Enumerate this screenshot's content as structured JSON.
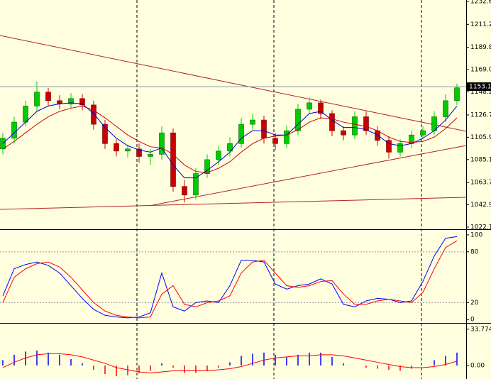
{
  "chart_data": [
    {
      "type": "candlestick",
      "open": [
        1095,
        1105,
        1120,
        1135,
        1148,
        1140,
        1137,
        1142,
        1136,
        1118,
        1100,
        1093,
        1095,
        1088,
        1090,
        1110,
        1060,
        1052,
        1072,
        1085,
        1093,
        1100,
        1118,
        1122,
        1105,
        1100,
        1112,
        1132,
        1138,
        1128,
        1112,
        1108,
        1125,
        1112,
        1103,
        1092,
        1100,
        1108,
        1112,
        1125,
        1140
      ],
      "high": [
        1110,
        1125,
        1140,
        1158,
        1152,
        1145,
        1147,
        1146,
        1140,
        1122,
        1104,
        1099,
        1100,
        1095,
        1116,
        1114,
        1066,
        1077,
        1090,
        1098,
        1106,
        1124,
        1128,
        1126,
        1110,
        1117,
        1137,
        1143,
        1141,
        1131,
        1116,
        1130,
        1130,
        1116,
        1107,
        1104,
        1112,
        1116,
        1130,
        1146,
        1156
      ],
      "low": [
        1090,
        1100,
        1116,
        1130,
        1135,
        1132,
        1133,
        1131,
        1113,
        1095,
        1088,
        1087,
        1082,
        1080,
        1085,
        1055,
        1045,
        1048,
        1068,
        1080,
        1088,
        1096,
        1113,
        1100,
        1094,
        1096,
        1108,
        1128,
        1123,
        1107,
        1103,
        1104,
        1108,
        1098,
        1086,
        1088,
        1096,
        1104,
        1108,
        1120,
        1136
      ],
      "close": [
        1105,
        1120,
        1135,
        1148,
        1140,
        1137,
        1142,
        1136,
        1118,
        1100,
        1093,
        1095,
        1088,
        1090,
        1110,
        1060,
        1052,
        1072,
        1085,
        1093,
        1100,
        1118,
        1122,
        1105,
        1100,
        1112,
        1132,
        1138,
        1128,
        1112,
        1108,
        1125,
        1112,
        1103,
        1092,
        1100,
        1108,
        1112,
        1125,
        1140,
        1152
      ],
      "up_color": "#00cc00",
      "down_color": "#cc0000",
      "series": [
        {
          "color": "#0000cc",
          "values": [
            1100,
            1110,
            1120,
            1130,
            1135,
            1137,
            1138,
            1137,
            1128,
            1115,
            1105,
            1098,
            1094,
            1092,
            1096,
            1080,
            1068,
            1068,
            1075,
            1083,
            1092,
            1105,
            1112,
            1112,
            1108,
            1108,
            1118,
            1128,
            1130,
            1122,
            1115,
            1115,
            1113,
            1108,
            1100,
            1098,
            1100,
            1105,
            1112,
            1122,
            1135
          ]
        },
        {
          "color": "#cc0000",
          "values": [
            1095,
            1102,
            1110,
            1118,
            1125,
            1130,
            1133,
            1135,
            1131,
            1124,
            1116,
            1108,
            1102,
            1097,
            1096,
            1090,
            1080,
            1074,
            1073,
            1077,
            1083,
            1092,
            1100,
            1105,
            1107,
            1108,
            1113,
            1120,
            1124,
            1123,
            1120,
            1118,
            1116,
            1112,
            1106,
            1102,
            1101,
            1102,
            1106,
            1114,
            1124
          ]
        }
      ],
      "last_price": 1153.1,
      "ylim": [
        1020.1,
        1233.9
      ],
      "yticks": [
        1022.1,
        1042.9,
        1063.7,
        1085.1,
        1105.9,
        1126.7,
        1148.2,
        {
          "value": 1169,
          "label": "1169.0"
        },
        1189.8,
        1211.2,
        1232.6
      ]
    },
    {
      "type": "line",
      "series": [
        {
          "color": "#0000ff",
          "values": [
            28,
            60,
            65,
            68,
            64,
            55,
            40,
            25,
            12,
            5,
            3,
            2,
            3,
            8,
            55,
            15,
            10,
            20,
            22,
            20,
            40,
            70,
            70,
            68,
            42,
            36,
            40,
            42,
            48,
            42,
            18,
            15,
            22,
            25,
            24,
            20,
            22,
            45,
            75,
            96,
            98
          ]
        },
        {
          "color": "#ff0000",
          "values": [
            20,
            50,
            60,
            66,
            68,
            62,
            50,
            35,
            20,
            10,
            5,
            3,
            2,
            3,
            30,
            40,
            18,
            15,
            20,
            22,
            28,
            55,
            68,
            70,
            55,
            40,
            38,
            40,
            45,
            46,
            30,
            18,
            18,
            22,
            24,
            22,
            20,
            32,
            60,
            85,
            93
          ]
        }
      ],
      "levels": [
        20,
        80
      ],
      "ylim": [
        -4,
        105
      ],
      "yticks": [
        0,
        20,
        80,
        100
      ]
    },
    {
      "type": "bar",
      "values": [
        5,
        10,
        13,
        14,
        12,
        10,
        6,
        2,
        -4,
        -8,
        -10,
        -9,
        -7,
        -5,
        2,
        -2,
        -7,
        -7,
        -5,
        -2,
        3,
        9,
        11,
        12,
        10,
        8,
        10,
        12,
        12,
        8,
        2,
        0,
        -2,
        -3,
        -4,
        -5,
        -3,
        0,
        5,
        9,
        12
      ],
      "up_color": "#0000ff",
      "down_color": "#ff0000",
      "signal": {
        "color": "#ff0000",
        "values": [
          -2,
          3,
          7,
          10,
          11,
          11,
          10,
          8,
          5,
          2,
          -2,
          -4,
          -6,
          -7,
          -6,
          -5,
          -5,
          -5,
          -5,
          -4,
          -3,
          -1,
          2,
          5,
          7,
          8,
          9,
          9,
          10,
          10,
          9,
          7,
          5,
          3,
          1,
          -1,
          -2,
          -2,
          -1,
          1,
          4
        ]
      },
      "ylim": [
        -12.6,
        37.7
      ],
      "yticks": [
        {
          "value": 0,
          "label": "0.00"
        },
        33.774
      ]
    }
  ]
}
